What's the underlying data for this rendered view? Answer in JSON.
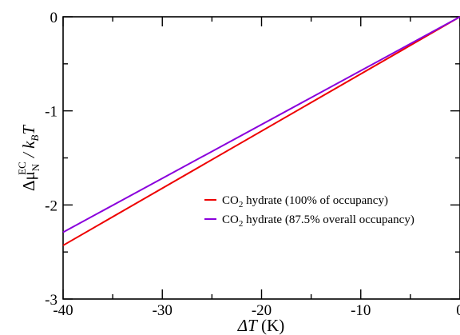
{
  "chart_data": {
    "type": "line",
    "title": "",
    "xlabel": {
      "symbol": "ΔT",
      "unit": " (K)"
    },
    "ylabel": {
      "delta": "Δ",
      "mu": "μ",
      "sub": "N",
      "sup": "EC",
      "over": " / k",
      "kb_sub": "B",
      "T": "T"
    },
    "xlim": [
      -40,
      0
    ],
    "ylim": [
      -3,
      0
    ],
    "xticks": [
      -40,
      -30,
      -20,
      -10,
      0
    ],
    "xtick_labels": [
      "-40",
      "-30",
      "-20",
      "-10",
      "0"
    ],
    "yticks": [
      -3,
      -2,
      -1,
      0
    ],
    "ytick_labels": [
      "-3",
      "-2",
      "-1",
      "0"
    ],
    "grid": false,
    "legend_placement": "center-right",
    "series": [
      {
        "name": {
          "pre": "CO",
          "sub": "2",
          "post": " hydrate (100% of occupancy)"
        },
        "color": "#ee0000",
        "x": [
          -40,
          0
        ],
        "y": [
          -2.43,
          0
        ]
      },
      {
        "name": {
          "pre": "CO",
          "sub": "2",
          "post": " hydrate (87.5% overall occupancy)"
        },
        "color": "#8a00dc",
        "x": [
          -40,
          0
        ],
        "y": [
          -2.29,
          0
        ]
      }
    ]
  }
}
